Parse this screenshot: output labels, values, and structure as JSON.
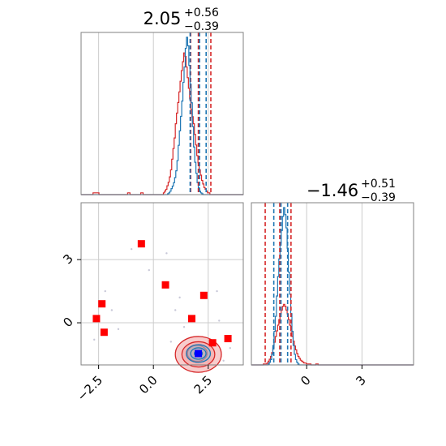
{
  "chart_data": {
    "type": "corner",
    "colors": {
      "hist_a": "#1f77b4",
      "hist_b": "#d62728",
      "quantile_a": "#1f77b4",
      "quantile_b": "#d62728",
      "contour_fill": "#f2a3a3",
      "grid": "#cccccc",
      "square_marker": "#ff0000",
      "center_marker": "#0000ff"
    },
    "parameters": [
      {
        "title": {
          "base": "2.05",
          "upper": "+0.56",
          "lower": "−0.39"
        },
        "xlim": [
          -3.3,
          4.1
        ],
        "ticks": [
          -2.5,
          0.0,
          2.5
        ],
        "tick_labels": [
          "−2.5",
          "0.0",
          "2.5"
        ],
        "quantiles_a": [
          1.62,
          2.05,
          2.35
        ],
        "quantiles_b": [
          1.7,
          2.05,
          2.62
        ]
      },
      {
        "title": {
          "base": "−1.46",
          "upper": "+0.51",
          "lower": "−0.39"
        },
        "xlim": [
          -3.0,
          5.8
        ],
        "ylim": [
          -2.0,
          5.7
        ],
        "ticks": [
          0,
          3
        ],
        "tick_labels": [
          "0",
          "3"
        ],
        "quantiles_a": [
          -1.85,
          -1.46,
          -1.1
        ],
        "quantiles_b": [
          -2.25,
          -1.46,
          -0.85
        ]
      }
    ],
    "hist_a_1d": {
      "x": {
        "range": [
          -3.3,
          4.1
        ],
        "counts": [
          0,
          0,
          0,
          0,
          0,
          0,
          0,
          0,
          0,
          0,
          0,
          0,
          0,
          0,
          0,
          0,
          0,
          0,
          0,
          0,
          0,
          0,
          0,
          0,
          0,
          0,
          0,
          0,
          0,
          0,
          0,
          0,
          0,
          0,
          0,
          0,
          0,
          0,
          0,
          0,
          0,
          0,
          0,
          0,
          0,
          0,
          0,
          0,
          0,
          0,
          0,
          0,
          0,
          0,
          0,
          0,
          0,
          0,
          0,
          0,
          0,
          0,
          0,
          0,
          0,
          0,
          0,
          0,
          0,
          0,
          0,
          0,
          0,
          1,
          2,
          4,
          7,
          10,
          14,
          20,
          28,
          40,
          58,
          75,
          92,
          110,
          132,
          150,
          172,
          185,
          175,
          152,
          130,
          108,
          80,
          56,
          38,
          25,
          14,
          8,
          4,
          2,
          1,
          0,
          0,
          0,
          0,
          0,
          0,
          0,
          0,
          0,
          0,
          0,
          0,
          0,
          0,
          0,
          0,
          0,
          0,
          0,
          0,
          0,
          0,
          0,
          0,
          0,
          0,
          0,
          0,
          0,
          0,
          0,
          0,
          0,
          0
        ]
      },
      "y": {
        "range": [
          -3.0,
          5.8
        ],
        "counts": [
          0,
          0,
          0,
          0,
          0,
          0,
          0,
          0,
          0,
          0,
          0,
          0,
          0,
          0,
          1,
          3,
          6,
          12,
          22,
          38,
          55,
          78,
          100,
          120,
          138,
          152,
          168,
          178,
          170,
          155,
          132,
          105,
          80,
          58,
          38,
          22,
          12,
          6,
          3,
          1,
          0,
          0,
          0,
          0,
          0,
          0,
          0,
          0,
          0,
          0,
          0,
          0,
          0,
          0,
          0,
          0,
          0,
          0,
          0,
          0,
          0,
          0,
          0,
          0,
          0,
          0,
          0,
          0,
          0,
          0,
          0,
          0,
          0,
          0,
          0,
          0,
          0,
          0,
          0,
          0,
          0,
          0,
          0,
          0,
          0,
          0,
          0,
          0,
          0,
          0,
          0,
          0,
          0,
          0,
          0,
          0,
          0,
          0,
          0,
          0,
          0,
          0,
          0,
          0,
          0,
          0,
          0,
          0,
          0,
          0,
          0,
          0,
          0,
          0,
          0,
          0,
          0,
          0,
          0,
          0,
          0,
          0,
          0,
          0,
          0,
          0,
          0,
          0,
          0,
          0,
          0,
          0,
          0,
          0,
          0,
          0
        ]
      }
    },
    "hist_b_1d": {
      "x": {
        "range": [
          -3.3,
          4.1
        ],
        "counts": [
          0,
          0,
          0,
          0,
          0,
          0,
          0,
          0,
          0,
          0,
          1,
          1,
          1,
          1,
          1,
          0,
          0,
          0,
          0,
          0,
          0,
          0,
          0,
          0,
          0,
          0,
          0,
          0,
          0,
          0,
          0,
          0,
          0,
          0,
          0,
          0,
          0,
          0,
          0,
          1,
          1,
          0,
          0,
          0,
          0,
          0,
          0,
          0,
          0,
          0,
          1,
          1,
          0,
          0,
          0,
          0,
          0,
          0,
          0,
          0,
          0,
          0,
          0,
          0,
          0,
          0,
          0,
          0,
          0,
          1,
          2,
          3,
          5,
          7,
          10,
          14,
          20,
          26,
          32,
          40,
          46,
          52,
          58,
          64,
          70,
          75,
          80,
          78,
          72,
          66,
          60,
          54,
          48,
          44,
          40,
          34,
          28,
          22,
          18,
          14,
          11,
          8,
          6,
          4,
          3,
          2,
          1,
          1,
          0,
          0,
          0,
          0,
          0,
          0,
          0,
          0,
          0,
          0,
          0,
          0,
          0,
          0,
          0,
          0,
          0,
          0,
          0,
          0,
          0,
          0,
          0,
          0,
          0,
          0,
          0,
          0
        ]
      },
      "y": {
        "range": [
          -3.0,
          5.8
        ],
        "counts": [
          0,
          0,
          0,
          0,
          0,
          0,
          0,
          0,
          0,
          0,
          1,
          1,
          1,
          2,
          4,
          6,
          9,
          13,
          18,
          24,
          30,
          36,
          42,
          48,
          54,
          58,
          62,
          64,
          62,
          58,
          54,
          48,
          42,
          36,
          30,
          25,
          20,
          16,
          12,
          9,
          7,
          5,
          4,
          3,
          2,
          2,
          1,
          1,
          1,
          1,
          0,
          0,
          0,
          0,
          1,
          1,
          0,
          0,
          0,
          0,
          0,
          0,
          0,
          0,
          0,
          0,
          0,
          0,
          0,
          0,
          0,
          0,
          0,
          0,
          0,
          0,
          0,
          0,
          0,
          0,
          0,
          0,
          0,
          0,
          0,
          0,
          0,
          0,
          0,
          0,
          0,
          0,
          0,
          0,
          0,
          0,
          0,
          0,
          0,
          0,
          0,
          0,
          0,
          0,
          0,
          0,
          0,
          0,
          0,
          0,
          0,
          0,
          0,
          0,
          0,
          0,
          0,
          0,
          0,
          0,
          0,
          0,
          0,
          0,
          0,
          0,
          0,
          0,
          0,
          0,
          0,
          0,
          0,
          0,
          0,
          0
        ]
      }
    },
    "joint": {
      "center": [
        2.05,
        -1.46
      ],
      "square_markers": [
        [
          -0.55,
          3.75
        ],
        [
          -2.35,
          0.9
        ],
        [
          -2.6,
          0.2
        ],
        [
          -2.25,
          -0.45
        ],
        [
          0.55,
          1.8
        ],
        [
          1.75,
          0.2
        ],
        [
          2.3,
          1.3
        ],
        [
          2.7,
          -0.95
        ],
        [
          3.4,
          -0.75
        ]
      ],
      "faint_points": [
        [
          -2.2,
          1.5
        ],
        [
          -2.4,
          1.0
        ],
        [
          -1.9,
          0.6
        ],
        [
          -1.6,
          -0.3
        ],
        [
          -0.2,
          2.5
        ],
        [
          0.6,
          3.3
        ],
        [
          1.0,
          0.6
        ],
        [
          3.0,
          0.1
        ],
        [
          3.5,
          -1.2
        ],
        [
          3.2,
          -1.8
        ],
        [
          0.8,
          -0.9
        ],
        [
          1.2,
          1.2
        ],
        [
          -1.0,
          3.5
        ],
        [
          1.4,
          -0.2
        ],
        [
          2.9,
          1.5
        ],
        [
          -2.7,
          -0.8
        ]
      ],
      "contours_b": [
        {
          "cx": 2.05,
          "cy": -1.5,
          "rx": 1.05,
          "ry": 0.85
        },
        {
          "cx": 2.05,
          "cy": -1.5,
          "rx": 0.75,
          "ry": 0.6
        },
        {
          "cx": 2.0,
          "cy": -1.45,
          "rx": 0.45,
          "ry": 0.38
        }
      ],
      "contours_a": [
        {
          "cx": 2.05,
          "cy": -1.46,
          "rx": 0.55,
          "ry": 0.42
        },
        {
          "cx": 2.05,
          "cy": -1.46,
          "rx": 0.35,
          "ry": 0.27
        },
        {
          "cx": 2.05,
          "cy": -1.46,
          "rx": 0.18,
          "ry": 0.14
        }
      ]
    }
  }
}
